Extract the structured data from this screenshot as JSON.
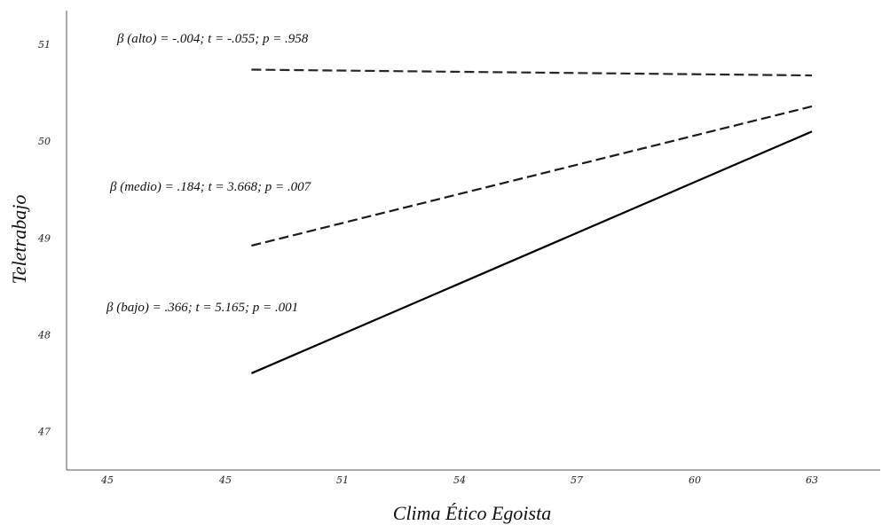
{
  "chart_data": {
    "type": "line",
    "xlabel": "Clima Ético Egoista",
    "ylabel": "Teletrabajo",
    "x_ticks": [
      "45",
      "45",
      "51",
      "54",
      "57",
      "60",
      "63"
    ],
    "y_ticks": [
      "47",
      "48",
      "49",
      "50",
      "51"
    ],
    "ylim": [
      46.6,
      51.35
    ],
    "grid": false,
    "series": [
      {
        "key": "alto",
        "style": "dashed",
        "color": "#2a2230",
        "x_from": 45.8,
        "x_to": 63,
        "y_from": 50.74,
        "y_to": 50.68,
        "label": "β (alto) = -.004; t = -.055; p = .958"
      },
      {
        "key": "medio",
        "style": "dashed",
        "color": "#1a1a1a",
        "x_from": 45.8,
        "x_to": 63,
        "y_from": 48.92,
        "y_to": 50.36,
        "label": "β (medio) = .184; t = 3.668; p = .007"
      },
      {
        "key": "bajo",
        "style": "solid",
        "color": "#000000",
        "x_from": 45.8,
        "x_to": 63,
        "y_from": 47.6,
        "y_to": 50.1,
        "label": "β (bajo) = .366; t = 5.165; p = .001"
      }
    ]
  }
}
